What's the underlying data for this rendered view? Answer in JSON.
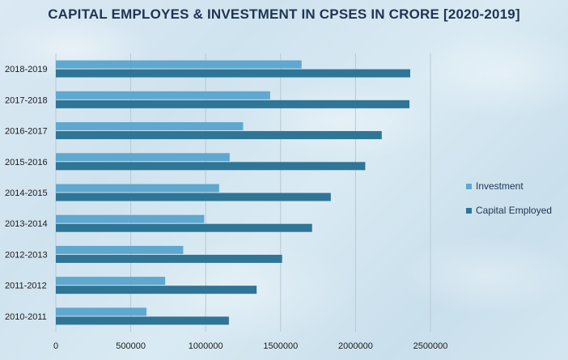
{
  "chart_data": {
    "type": "bar",
    "orientation": "horizontal",
    "title": "CAPITAL EMPLOYES & INVESTMENT IN CPSES IN CRORE [2020-2019]",
    "categories": [
      "2010-2011",
      "2011-2012",
      "2012-2013",
      "2013-2014",
      "2014-2015",
      "2015-2016",
      "2016-2017",
      "2017-2018",
      "2018-2019"
    ],
    "series": [
      {
        "name": "Investment",
        "color": "#5fa8cf",
        "values": [
          605000,
          730000,
          850000,
          990000,
          1090000,
          1160000,
          1250000,
          1430000,
          1640000
        ]
      },
      {
        "name": "Capital Employed",
        "color": "#2f7596",
        "values": [
          1155000,
          1340000,
          1510000,
          1710000,
          1835000,
          2065000,
          2175000,
          2360000,
          2365000
        ]
      }
    ],
    "xlim": [
      0,
      2500000
    ],
    "xticks": [
      "0",
      "500000",
      "1000000",
      "1500000",
      "2000000",
      "2500000"
    ],
    "grid": true,
    "legend_position": "right"
  }
}
